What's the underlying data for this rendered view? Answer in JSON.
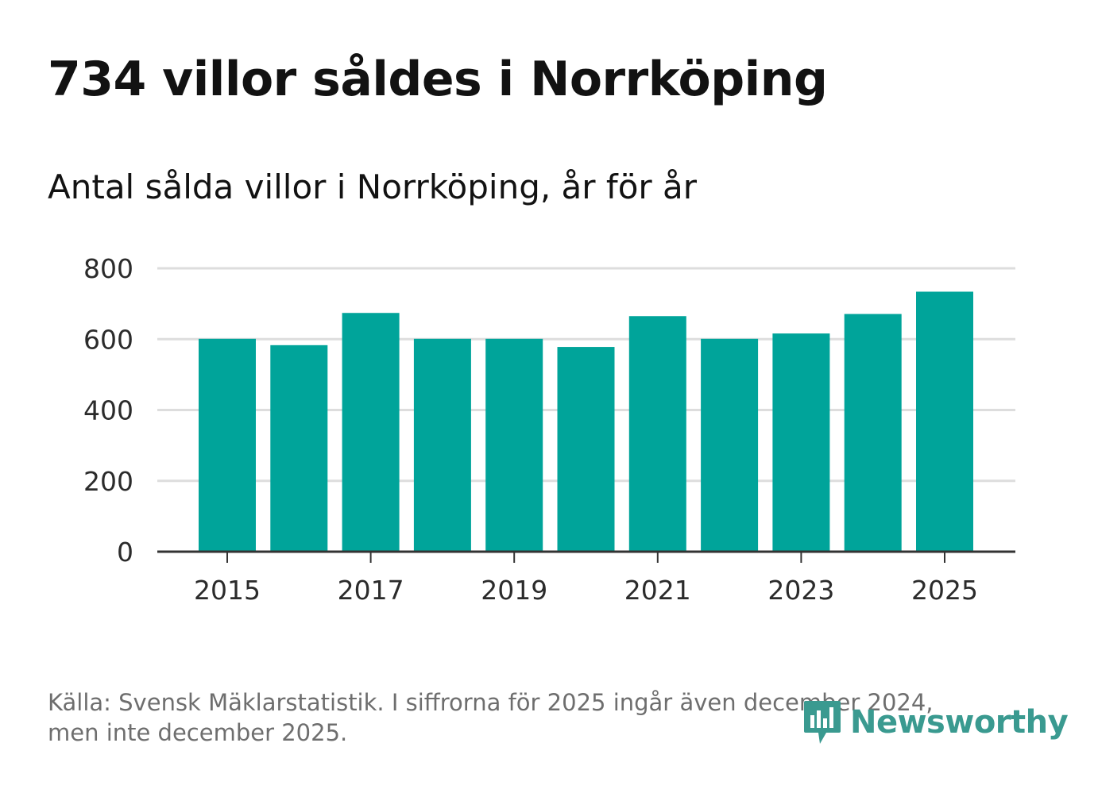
{
  "header": {
    "title": "734 villor såldes i Norrköping",
    "subtitle": "Antal sålda villor i Norrköping, år för år"
  },
  "footer": {
    "source_line1": "Källa: Svensk Mäklarstatistik. I siffrorna för 2025 ingår även december 2024,",
    "source_line2": "men inte december 2025."
  },
  "logo": {
    "text": "Newsworthy",
    "icon": "newsworthy-bar-chart-icon",
    "color": "#3a9a90"
  },
  "colors": {
    "bar": "#00a49a",
    "grid": "#dddddd",
    "axis": "#333333"
  },
  "chart_data": {
    "type": "bar",
    "title": "Antal sålda villor i Norrköping, år för år",
    "xlabel": "",
    "ylabel": "",
    "categories": [
      "2015",
      "2016",
      "2017",
      "2018",
      "2019",
      "2020",
      "2021",
      "2022",
      "2023",
      "2024",
      "2025"
    ],
    "values": [
      601,
      583,
      674,
      601,
      601,
      578,
      665,
      601,
      616,
      671,
      734
    ],
    "x_tick_labels": [
      "2015",
      "2017",
      "2019",
      "2021",
      "2023",
      "2025"
    ],
    "y_ticks": [
      0,
      200,
      400,
      600,
      800
    ],
    "ylim": [
      0,
      800
    ],
    "grid": true,
    "legend": "none"
  }
}
